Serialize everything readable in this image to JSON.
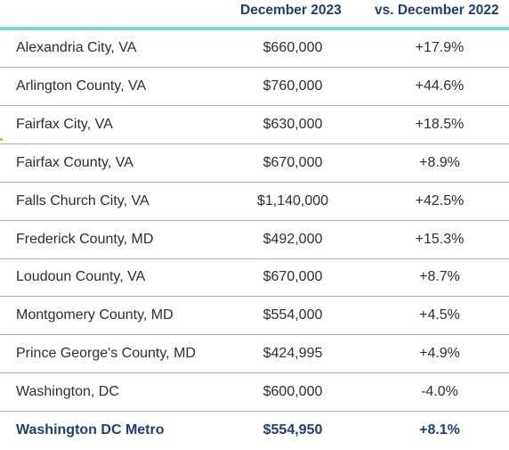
{
  "header": {
    "col1": "",
    "col2": "December 2023",
    "col3": "vs. December 2022"
  },
  "rows": [
    {
      "area": "Alexandria City, VA",
      "price": "$660,000",
      "change": "+17.9%"
    },
    {
      "area": "Arlington County, VA",
      "price": "$760,000",
      "change": "+44.6%"
    },
    {
      "area": "Fairfax City, VA",
      "price": "$630,000",
      "change": "+18.5%"
    },
    {
      "area": "Fairfax County, VA",
      "price": "$670,000",
      "change": "+8.9%"
    },
    {
      "area": "Falls Church City, VA",
      "price": "$1,140,000",
      "change": "+42.5%"
    },
    {
      "area": "Frederick County, MD",
      "price": "$492,000",
      "change": "+15.3%"
    },
    {
      "area": "Loudoun County, VA",
      "price": "$670,000",
      "change": "+8.7%"
    },
    {
      "area": "Montgomery County, MD",
      "price": "$554,000",
      "change": "+4.5%"
    },
    {
      "area": "Prince George's County, MD",
      "price": "$424,995",
      "change": "+4.9%"
    },
    {
      "area": "Washington,  DC",
      "price": "$600,000",
      "change": "-4.0%"
    }
  ],
  "total": {
    "area": "Washington DC Metro",
    "price": "$554,950",
    "change": "+8.1%"
  },
  "colors": {
    "header_text": "#1f3f74",
    "header_rule": "#7fd6d2",
    "row_divider": "#a8b2bc",
    "body_text": "#2a2e35"
  }
}
